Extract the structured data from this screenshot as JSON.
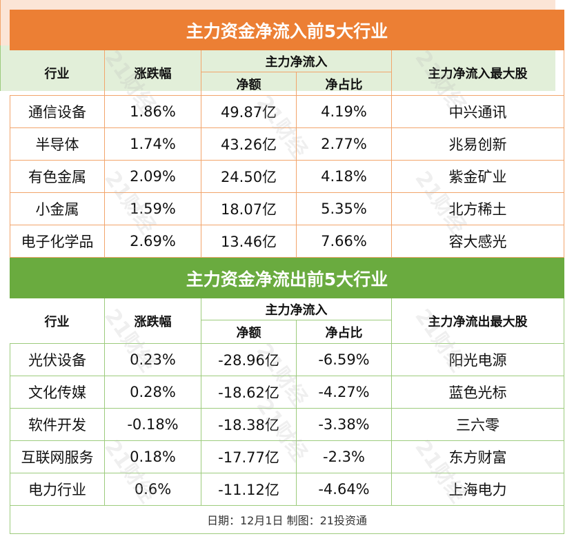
{
  "inflow": {
    "title": "主力资金净流入前5大行业",
    "header": {
      "industry": "行业",
      "change": "涨跌幅",
      "group": "主力净流入",
      "amount": "净额",
      "ratio": "净占比",
      "top_stock": "主力净流入最大股"
    },
    "rows": [
      [
        "通信设备",
        "1.86%",
        "49.87亿",
        "4.19%",
        "中兴通讯"
      ],
      [
        "半导体",
        "1.74%",
        "43.26亿",
        "2.77%",
        "兆易创新"
      ],
      [
        "有色金属",
        "2.09%",
        "24.50亿",
        "4.18%",
        "紫金矿业"
      ],
      [
        "小金属",
        "1.59%",
        "18.07亿",
        "5.35%",
        "北方稀土"
      ],
      [
        "电子化学品",
        "2.69%",
        "13.46亿",
        "7.66%",
        "容大感光"
      ]
    ]
  },
  "outflow": {
    "title": "主力资金净流出前5大行业",
    "header": {
      "industry": "行业",
      "change": "涨跌幅",
      "group": "主力净流入",
      "amount": "净额",
      "ratio": "净占比",
      "top_stock": "主力净流出最大股"
    },
    "rows": [
      [
        "光伏设备",
        "0.23%",
        "-28.96亿",
        "-6.59%",
        "阳光电源"
      ],
      [
        "文化传媒",
        "0.28%",
        "-18.62亿",
        "-4.27%",
        "蓝色光标"
      ],
      [
        "软件开发",
        "-0.18%",
        "-18.38亿",
        "-3.38%",
        "三六零"
      ],
      [
        "互联网服务",
        "0.18%",
        "-17.77亿",
        "-2.3%",
        "东方财富"
      ],
      [
        "电力行业",
        "0.6%",
        "-11.12亿",
        "-4.64%",
        "上海电力"
      ]
    ]
  },
  "footer": "日期：12月1日 制图：21投资通",
  "watermark": "21财经"
}
